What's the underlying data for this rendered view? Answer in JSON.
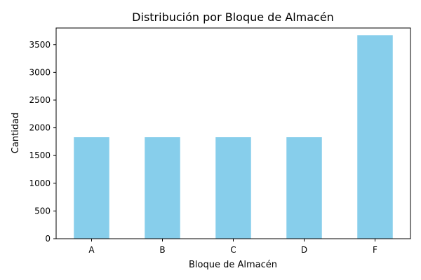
{
  "chart_data": {
    "type": "bar",
    "title": "Distribución por Bloque de Almacén",
    "xlabel": "Bloque de Almacén",
    "ylabel": "Cantidad",
    "categories": [
      "A",
      "B",
      "C",
      "D",
      "F"
    ],
    "values": [
      1830,
      1830,
      1830,
      1830,
      3670
    ],
    "ylim": [
      0,
      3800
    ],
    "yticks": [
      0,
      500,
      1000,
      1500,
      2000,
      2500,
      3000,
      3500
    ],
    "grid": false,
    "legend": "none",
    "bar_color": "#87CEEB"
  }
}
